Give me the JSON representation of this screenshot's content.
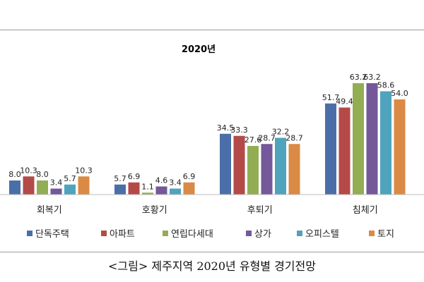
{
  "caption": "<그림> 제주지역 2020년 유형별 경기전망",
  "chart_data": {
    "type": "bar",
    "title": "2020년",
    "categories": [
      "회복기",
      "호황기",
      "후퇴기",
      "침체기"
    ],
    "series": [
      {
        "name": "단독주택",
        "color": "#4A6FA8",
        "values": [
          8.0,
          5.7,
          34.5,
          51.7
        ]
      },
      {
        "name": "아파트",
        "color": "#B44A47",
        "values": [
          10.3,
          6.9,
          33.3,
          49.4
        ]
      },
      {
        "name": "연립다세대",
        "color": "#93AD55",
        "values": [
          8.0,
          1.1,
          27.6,
          63.2
        ]
      },
      {
        "name": "상가",
        "color": "#74589A",
        "values": [
          3.4,
          4.6,
          28.7,
          63.2
        ]
      },
      {
        "name": "오피스텔",
        "color": "#4FA3BC",
        "values": [
          5.7,
          3.4,
          32.2,
          58.6
        ]
      },
      {
        "name": "토지",
        "color": "#DA8A44",
        "values": [
          10.3,
          6.9,
          28.7,
          54.0
        ]
      }
    ],
    "ylim": [
      0,
      70
    ],
    "grid": false,
    "legend_position": "bottom"
  }
}
